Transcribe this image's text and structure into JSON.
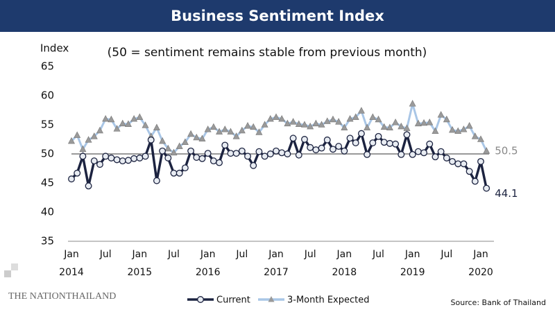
{
  "chart_data": {
    "type": "line",
    "title": "Business Sentiment Index",
    "subtitle": "(50 = sentiment remains stable from previous month)",
    "y_label": "Index",
    "source": "Source: Bank of Thailand",
    "logo": {
      "left": "THE NATION",
      "right": "THAILAND"
    },
    "categories": [
      "Jan",
      null,
      null,
      null,
      null,
      null,
      "Jul",
      null,
      null,
      null,
      null,
      null,
      "Jan",
      null,
      null,
      null,
      null,
      null,
      "Jul",
      null,
      null,
      null,
      null,
      null,
      "Jan",
      null,
      null,
      null,
      null,
      null,
      "Jul",
      null,
      null,
      null,
      null,
      null,
      "Jan",
      null,
      null,
      null,
      null,
      null,
      "Jul",
      null,
      null,
      null,
      null,
      null,
      "Jan",
      null,
      null,
      null,
      null,
      null,
      "Jul",
      null,
      null,
      null,
      null,
      null,
      "Jan",
      null,
      null,
      null,
      null,
      null,
      "Jul",
      null,
      null,
      null,
      null,
      null,
      "Jan",
      null
    ],
    "year_labels": [
      "2014",
      "2015",
      "2016",
      "2017",
      "2018",
      "2019",
      "2020"
    ],
    "ylim": [
      35,
      65
    ],
    "yticks": [
      35,
      40,
      45,
      50,
      55,
      60,
      65
    ],
    "reference_line": 50,
    "series": [
      {
        "name": "Current",
        "color": "#1c2340",
        "values": [
          45.7,
          46.7,
          49.6,
          44.5,
          48.8,
          48.2,
          49.6,
          49.3,
          49.0,
          48.8,
          48.9,
          49.2,
          49.3,
          49.6,
          52.4,
          45.4,
          50.5,
          49.3,
          46.7,
          46.7,
          47.6,
          50.5,
          49.4,
          49.2,
          50.1,
          48.8,
          48.5,
          51.5,
          50.1,
          50.1,
          50.5,
          49.6,
          48.0,
          50.4,
          49.6,
          50.0,
          50.5,
          50.2,
          50.0,
          52.7,
          49.8,
          52.5,
          51.1,
          50.7,
          51.0,
          52.4,
          50.8,
          51.3,
          50.5,
          52.7,
          51.9,
          53.5,
          49.9,
          51.9,
          53.0,
          52.0,
          51.8,
          51.7,
          49.9,
          53.3,
          49.9,
          50.4,
          50.2,
          51.7,
          49.5,
          50.4,
          49.3,
          48.7,
          48.3,
          48.3,
          47.0,
          45.3,
          48.7,
          44.1
        ],
        "value_labels": [
          null,
          null,
          null,
          null,
          null,
          null,
          null,
          null,
          null,
          null,
          null,
          null,
          null,
          null,
          null,
          null,
          null,
          null,
          null,
          null,
          null,
          null,
          null,
          null,
          null,
          null,
          null,
          null,
          null,
          null,
          null,
          null,
          null,
          null,
          null,
          null,
          null,
          null,
          null,
          null,
          null,
          null,
          null,
          null,
          null,
          null,
          null,
          null,
          null,
          null,
          null,
          null,
          null,
          null,
          null,
          null,
          null,
          null,
          null,
          null,
          null,
          null,
          null,
          null,
          null,
          null,
          null,
          null,
          null,
          null,
          null,
          null,
          null,
          "44.1"
        ]
      },
      {
        "name": "3-Month Expected",
        "color": "#a9c6e6",
        "values": [
          52.2,
          53.2,
          50.8,
          52.4,
          53.0,
          54.0,
          56.0,
          55.9,
          54.3,
          55.2,
          55.1,
          56.0,
          56.3,
          54.9,
          53.0,
          54.5,
          52.2,
          50.9,
          50.2,
          51.3,
          52.0,
          53.4,
          52.8,
          52.6,
          54.2,
          54.6,
          53.8,
          54.2,
          53.8,
          53.0,
          54.0,
          54.8,
          54.6,
          53.7,
          55.0,
          56.0,
          56.3,
          56.0,
          55.2,
          55.5,
          55.1,
          55.0,
          54.7,
          55.2,
          55.0,
          55.6,
          55.9,
          55.5,
          54.5,
          56.0,
          56.3,
          57.4,
          54.5,
          56.3,
          55.9,
          54.6,
          54.5,
          55.4,
          54.7,
          54.4,
          58.6,
          55.2,
          55.3,
          55.4,
          53.9,
          56.7,
          55.9,
          54.1,
          53.9,
          54.2,
          54.8,
          53.0,
          52.5,
          50.5
        ],
        "value_labels": [
          null,
          null,
          null,
          null,
          null,
          null,
          null,
          null,
          null,
          null,
          null,
          null,
          null,
          null,
          null,
          null,
          null,
          null,
          null,
          null,
          null,
          null,
          null,
          null,
          null,
          null,
          null,
          null,
          null,
          null,
          null,
          null,
          null,
          null,
          null,
          null,
          null,
          null,
          null,
          null,
          null,
          null,
          null,
          null,
          null,
          null,
          null,
          null,
          null,
          null,
          null,
          null,
          null,
          null,
          null,
          null,
          null,
          null,
          null,
          null,
          null,
          null,
          null,
          null,
          null,
          null,
          null,
          null,
          null,
          null,
          null,
          null,
          null,
          "50.5"
        ]
      }
    ]
  }
}
